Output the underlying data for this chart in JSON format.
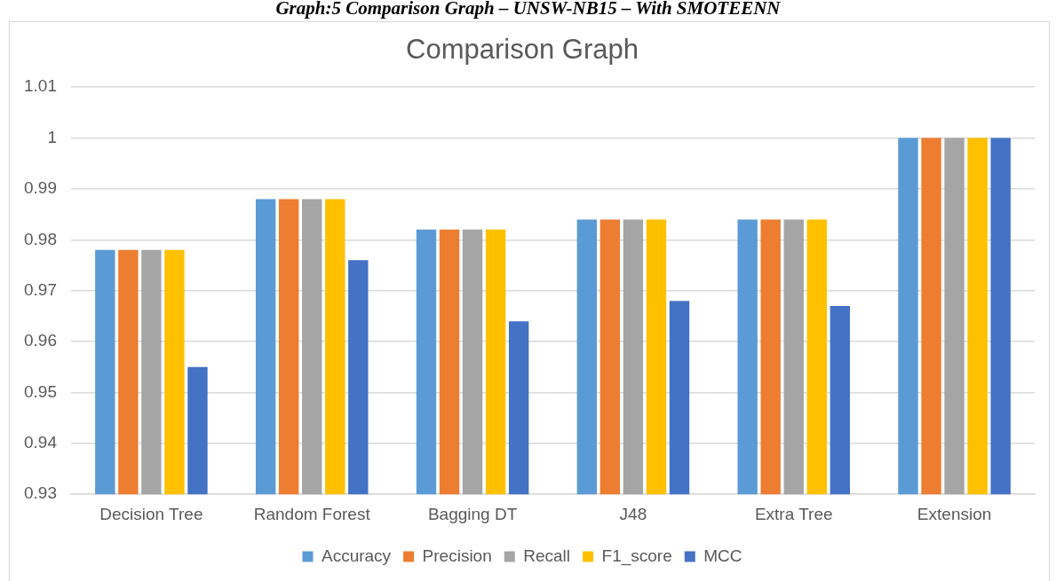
{
  "chart_data": {
    "type": "bar",
    "title": "Comparison Graph",
    "annotations": [
      "Graph:5 Comparison Graph – UNSW-NB15 – With SMOTEENN"
    ],
    "categories": [
      "Decision Tree",
      "Random Forest",
      "Bagging DT",
      "J48",
      "Extra Tree",
      "Extension"
    ],
    "series": [
      {
        "name": "Accuracy",
        "color": "#5b9bd5",
        "values": [
          0.978,
          0.988,
          0.982,
          0.984,
          0.984,
          1
        ]
      },
      {
        "name": "Precision",
        "color": "#ed7d31",
        "values": [
          0.978,
          0.988,
          0.982,
          0.984,
          0.984,
          1
        ]
      },
      {
        "name": "Recall",
        "color": "#a5a5a5",
        "values": [
          0.978,
          0.988,
          0.982,
          0.984,
          0.984,
          1
        ]
      },
      {
        "name": "F1_score",
        "color": "#ffc000",
        "values": [
          0.978,
          0.988,
          0.982,
          0.984,
          0.984,
          1
        ]
      },
      {
        "name": "MCC",
        "color": "#4472c4",
        "values": [
          0.955,
          0.976,
          0.964,
          0.968,
          0.967,
          1
        ]
      }
    ],
    "ylim": [
      0.93,
      1.01
    ],
    "yticks": [
      0.93,
      0.94,
      0.95,
      0.96,
      0.97,
      0.98,
      0.99,
      1,
      1.01
    ],
    "grid": "y",
    "legend": "bottom"
  }
}
